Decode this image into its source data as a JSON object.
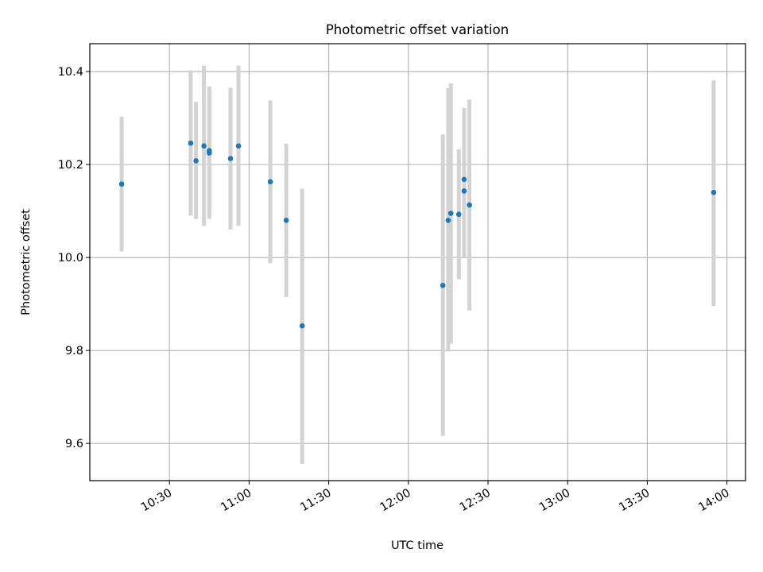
{
  "chart_data": {
    "type": "scatter",
    "title": "Photometric offset variation",
    "xlabel": "UTC time",
    "ylabel": "Photometric offset",
    "x_ticks": [
      "10:30",
      "11:00",
      "11:30",
      "12:00",
      "12:30",
      "13:00",
      "13:30",
      "14:00"
    ],
    "y_ticks": [
      "9.6",
      "9.8",
      "10.0",
      "10.2",
      "10.4"
    ],
    "xlim": [
      "10:00",
      "14:07"
    ],
    "ylim": [
      9.52,
      10.46
    ],
    "grid": true,
    "marker_color": "#1f77b4",
    "errorbar_color": "#d3d3d3",
    "points": [
      {
        "x": "10:12",
        "y": 10.158,
        "ylo": 10.013,
        "yhi": 10.303
      },
      {
        "x": "10:38",
        "y": 10.246,
        "ylo": 10.09,
        "yhi": 10.403
      },
      {
        "x": "10:40",
        "y": 10.208,
        "ylo": 10.083,
        "yhi": 10.335
      },
      {
        "x": "10:43",
        "y": 10.24,
        "ylo": 10.068,
        "yhi": 10.413
      },
      {
        "x": "10:45",
        "y": 10.225,
        "ylo": 10.083,
        "yhi": 10.368
      },
      {
        "x": "10:45",
        "y": 10.23,
        "ylo": 10.093,
        "yhi": 10.362
      },
      {
        "x": "10:53",
        "y": 10.213,
        "ylo": 10.06,
        "yhi": 10.365
      },
      {
        "x": "10:56",
        "y": 10.24,
        "ylo": 10.068,
        "yhi": 10.413
      },
      {
        "x": "11:08",
        "y": 10.163,
        "ylo": 9.988,
        "yhi": 10.338
      },
      {
        "x": "11:14",
        "y": 10.08,
        "ylo": 9.915,
        "yhi": 10.245
      },
      {
        "x": "11:20",
        "y": 9.853,
        "ylo": 9.556,
        "yhi": 10.148
      },
      {
        "x": "12:13",
        "y": 9.94,
        "ylo": 9.616,
        "yhi": 10.265
      },
      {
        "x": "12:15",
        "y": 10.08,
        "ylo": 9.798,
        "yhi": 10.365
      },
      {
        "x": "12:16",
        "y": 10.095,
        "ylo": 9.815,
        "yhi": 10.375
      },
      {
        "x": "12:19",
        "y": 10.093,
        "ylo": 9.953,
        "yhi": 10.233
      },
      {
        "x": "12:21",
        "y": 10.168,
        "ylo": 10.013,
        "yhi": 10.322
      },
      {
        "x": "12:21",
        "y": 10.143,
        "ylo": 10.0,
        "yhi": 10.28
      },
      {
        "x": "12:23",
        "y": 10.113,
        "ylo": 9.886,
        "yhi": 10.34
      },
      {
        "x": "13:55",
        "y": 10.14,
        "ylo": 9.896,
        "yhi": 10.381
      }
    ]
  }
}
